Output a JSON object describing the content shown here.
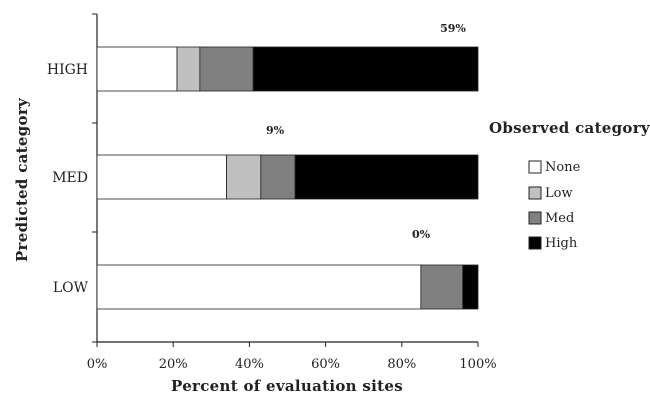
{
  "chart_data": {
    "type": "bar",
    "orientation": "horizontal",
    "stacked": true,
    "xlabel": "Percent of evaluation sites",
    "ylabel": "Predicted category",
    "xlim": [
      0,
      100
    ],
    "xticks": [
      "0%",
      "20%",
      "40%",
      "60%",
      "80%",
      "100%"
    ],
    "categories": [
      "HIGH",
      "MED",
      "LOW"
    ],
    "series": [
      {
        "name": "None",
        "color": "#ffffff",
        "values": [
          21,
          34,
          85
        ]
      },
      {
        "name": "Low",
        "color": "#c0c0c0",
        "values": [
          6,
          9,
          0
        ]
      },
      {
        "name": "Med",
        "color": "#808080",
        "values": [
          14,
          9,
          11
        ]
      },
      {
        "name": "High",
        "color": "#000000",
        "values": [
          59,
          48,
          4
        ]
      }
    ],
    "annotations": [
      "59%",
      "9%",
      "0%"
    ],
    "legend": {
      "title": "Observed category",
      "placement": "right"
    },
    "grid": false
  }
}
